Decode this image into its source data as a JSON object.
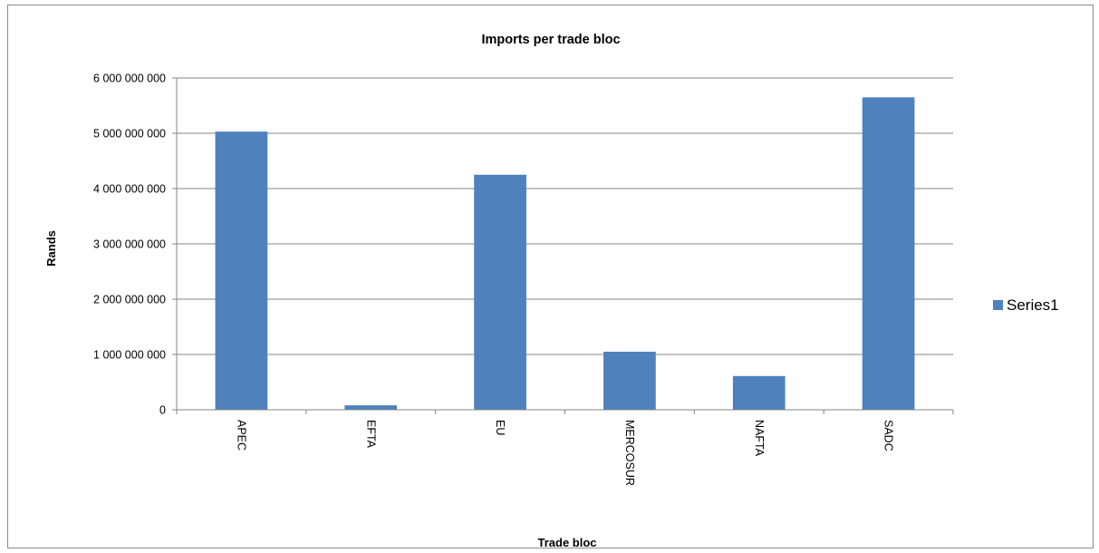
{
  "chart_data": {
    "type": "bar",
    "title": "Imports per trade bloc",
    "xlabel": "Trade bloc",
    "ylabel": "Rands",
    "categories": [
      "APEC",
      "EFTA",
      "EU",
      "MERCOSUR",
      "NAFTA",
      "SADC"
    ],
    "series": [
      {
        "name": "Series1",
        "color": "#4f81bd",
        "values": [
          5030000000,
          80000000,
          4250000000,
          1050000000,
          610000000,
          5650000000
        ]
      }
    ],
    "ylim": [
      0,
      6000000000
    ],
    "yticks": [
      0,
      1000000000,
      2000000000,
      3000000000,
      4000000000,
      5000000000,
      6000000000
    ],
    "ytick_labels": [
      "0",
      "1 000 000 000",
      "2 000 000 000",
      "3 000 000 000",
      "4 000 000 000",
      "5 000 000 000",
      "6 000 000 000"
    ],
    "grid": true,
    "legend_position": "right",
    "colors": {
      "bar": "#4f81bd",
      "gridline": "#868686",
      "axis": "#868686",
      "border": "#8c8c8c"
    }
  }
}
